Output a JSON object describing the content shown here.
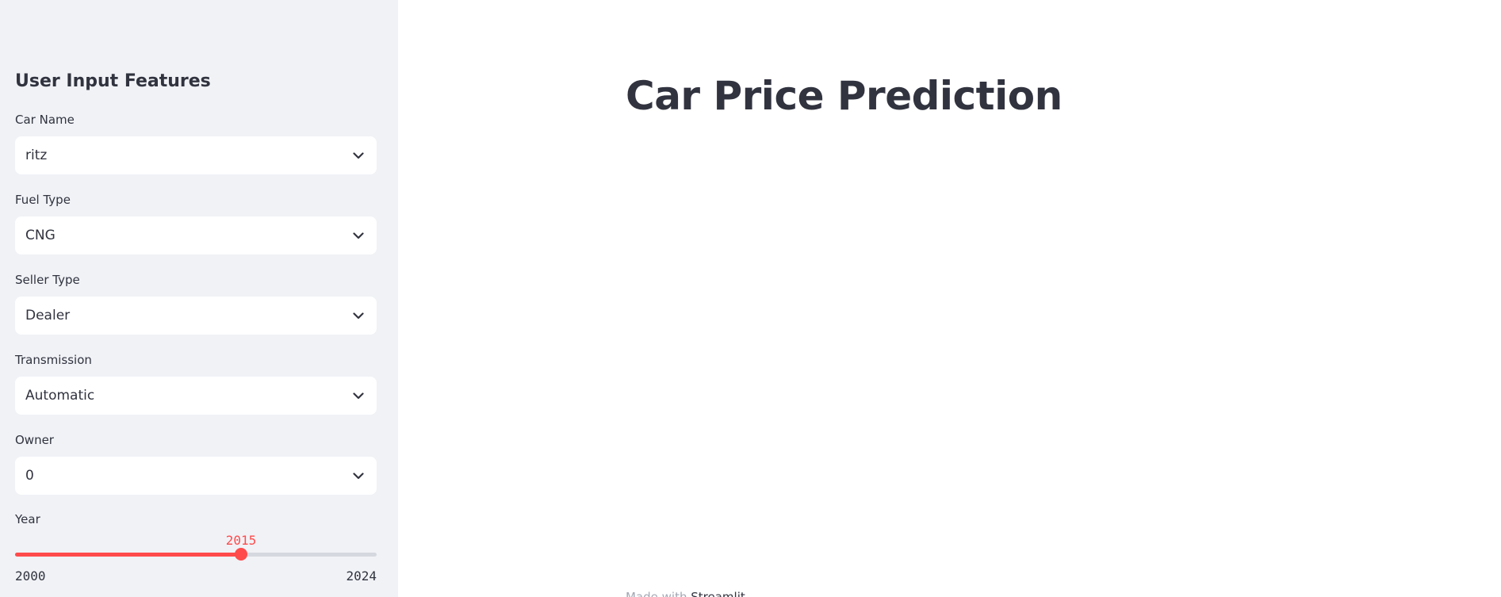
{
  "sidebar": {
    "title": "User Input Features",
    "fields": [
      {
        "label": "Car Name",
        "value": "ritz"
      },
      {
        "label": "Fuel Type",
        "value": "CNG"
      },
      {
        "label": "Seller Type",
        "value": "Dealer"
      },
      {
        "label": "Transmission",
        "value": "Automatic"
      },
      {
        "label": "Owner",
        "value": "0"
      }
    ],
    "year_slider": {
      "label": "Year",
      "value": "2015",
      "min": "2000",
      "max": "2024",
      "fraction": 0.625
    }
  },
  "main": {
    "title": "Car Price Prediction",
    "footer_prefix": "Made with",
    "footer_link": "Streamlit"
  },
  "colors": {
    "accent": "#ff4b4b",
    "sidebar_bg": "#f0f2f6",
    "text": "#31333f"
  },
  "icons": {
    "select_arrow": "chevron-down-icon"
  }
}
